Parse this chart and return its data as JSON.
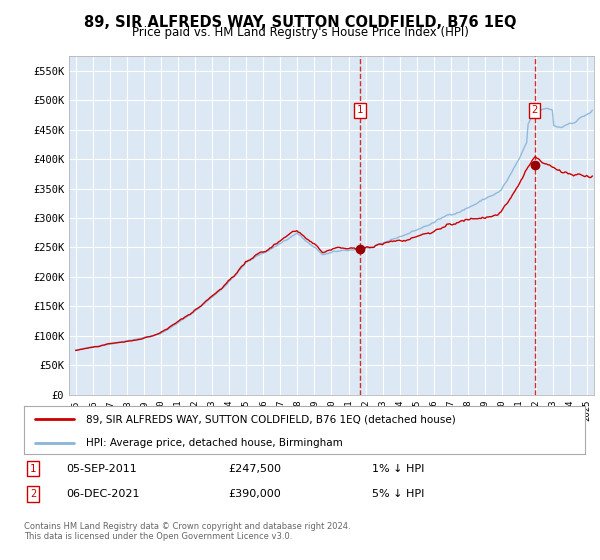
{
  "title": "89, SIR ALFREDS WAY, SUTTON COLDFIELD, B76 1EQ",
  "subtitle": "Price paid vs. HM Land Registry's House Price Index (HPI)",
  "ylim": [
    0,
    575000
  ],
  "yticks": [
    0,
    50000,
    100000,
    150000,
    200000,
    250000,
    300000,
    350000,
    400000,
    450000,
    500000,
    550000
  ],
  "ytick_labels": [
    "£0",
    "£50K",
    "£100K",
    "£150K",
    "£200K",
    "£250K",
    "£300K",
    "£350K",
    "£400K",
    "£450K",
    "£500K",
    "£550K"
  ],
  "bg_color": "#dce9f5",
  "grid_color": "#ffffff",
  "hpi_line_color": "#8ab4d9",
  "price_line_color": "#cc0000",
  "marker_color": "#990000",
  "dashed_line_color": "#cc0000",
  "legend_label_hpi": "HPI: Average price, detached house, Birmingham",
  "legend_label_price": "89, SIR ALFREDS WAY, SUTTON COLDFIELD, B76 1EQ (detached house)",
  "transaction1_date": "05-SEP-2011",
  "transaction1_price": 247500,
  "transaction1_year": 2011.67,
  "transaction1_label": "1% ↓ HPI",
  "transaction2_date": "06-DEC-2021",
  "transaction2_price": 390000,
  "transaction2_year": 2021.92,
  "transaction2_label": "5% ↓ HPI",
  "footer": "Contains HM Land Registry data © Crown copyright and database right 2024.\nThis data is licensed under the Open Government Licence v3.0.",
  "xmin": 1994.6,
  "xmax": 2025.4
}
